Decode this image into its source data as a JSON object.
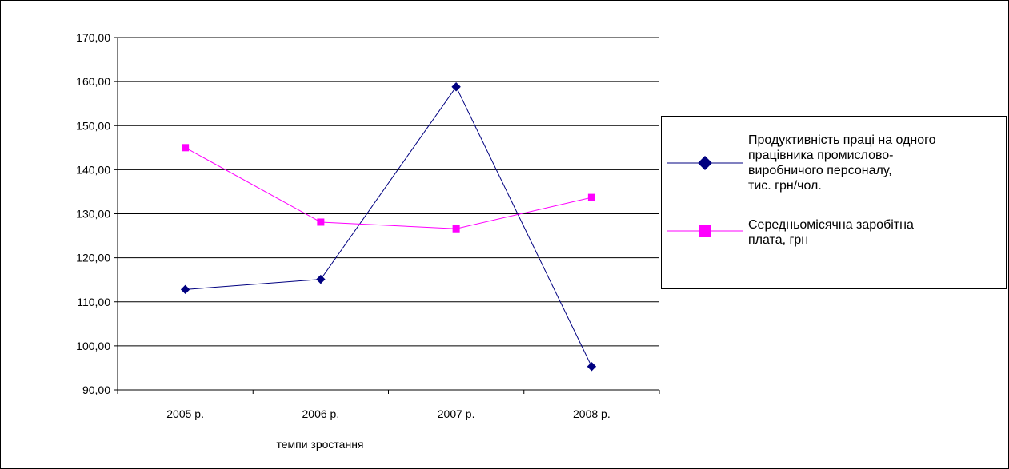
{
  "colors": {
    "series1": "#000080",
    "series2": "#ff00ff",
    "grid": "#000000",
    "background": "#ffffff"
  },
  "chart_data": {
    "type": "line",
    "title": "",
    "xlabel": "темпи зростання",
    "ylabel": "",
    "categories": [
      "2005 р.",
      "2006 р.",
      "2007 р.",
      "2008 р."
    ],
    "ylim": [
      90,
      170
    ],
    "ytick_step": 10,
    "ytick_labels": [
      "90,00",
      "100,00",
      "110,00",
      "120,00",
      "130,00",
      "140,00",
      "150,00",
      "160,00",
      "170,00"
    ],
    "grid": true,
    "legend_position": "right",
    "series": [
      {
        "name": "Продуктивність праці на одного працівника промислово-виробничого персоналу, тис. грн/чол.",
        "name_lines": [
          "Продуктивність праці на одного",
          "працівника промислово-",
          "виробничого персоналу,",
          "тис. грн/чол."
        ],
        "values": [
          112.8,
          115.1,
          158.8,
          95.3
        ],
        "color": "#000080",
        "marker": "diamond"
      },
      {
        "name": "Середньомісячна заробітна плата, грн",
        "name_lines": [
          "Середньомісячна заробітна",
          "плата, грн"
        ],
        "values": [
          145.0,
          128.1,
          126.6,
          133.7
        ],
        "color": "#ff00ff",
        "marker": "square"
      }
    ]
  }
}
